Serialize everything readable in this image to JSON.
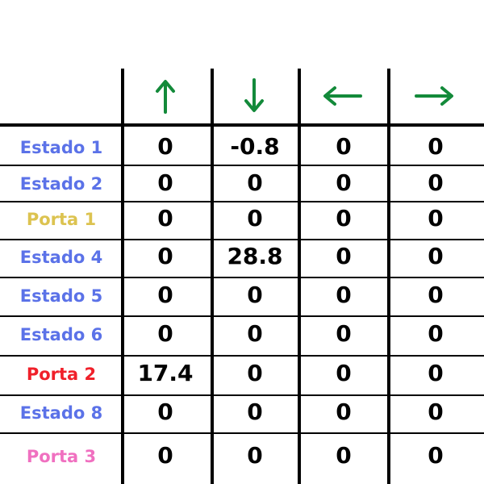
{
  "table": {
    "header_icons": [
      "arrow-up-icon",
      "arrow-down-icon",
      "arrow-left-icon",
      "arrow-right-icon"
    ],
    "arrow_color": "#138a3a",
    "rows": [
      {
        "label": "Estado 1",
        "color": "#5b72e8",
        "values": [
          "0",
          "-0.8",
          "0",
          "0"
        ]
      },
      {
        "label": "Estado 2",
        "color": "#5b72e8",
        "values": [
          "0",
          "0",
          "0",
          "0"
        ]
      },
      {
        "label": "Porta 1",
        "color": "#dcc350",
        "values": [
          "0",
          "0",
          "0",
          "0"
        ]
      },
      {
        "label": "Estado 4",
        "color": "#5b72e8",
        "values": [
          "0",
          "28.8",
          "0",
          "0"
        ]
      },
      {
        "label": "Estado 5",
        "color": "#5b72e8",
        "values": [
          "0",
          "0",
          "0",
          "0"
        ]
      },
      {
        "label": "Estado 6",
        "color": "#5b72e8",
        "values": [
          "0",
          "0",
          "0",
          "0"
        ]
      },
      {
        "label": "Porta 2",
        "color": "#f0202a",
        "values": [
          "17.4",
          "0",
          "0",
          "0"
        ]
      },
      {
        "label": "Estado 8",
        "color": "#5b72e8",
        "values": [
          "0",
          "0",
          "0",
          "0"
        ]
      },
      {
        "label": "Porta 3",
        "color": "#f070c0",
        "values": [
          "0",
          "0",
          "0",
          "0"
        ]
      }
    ]
  }
}
